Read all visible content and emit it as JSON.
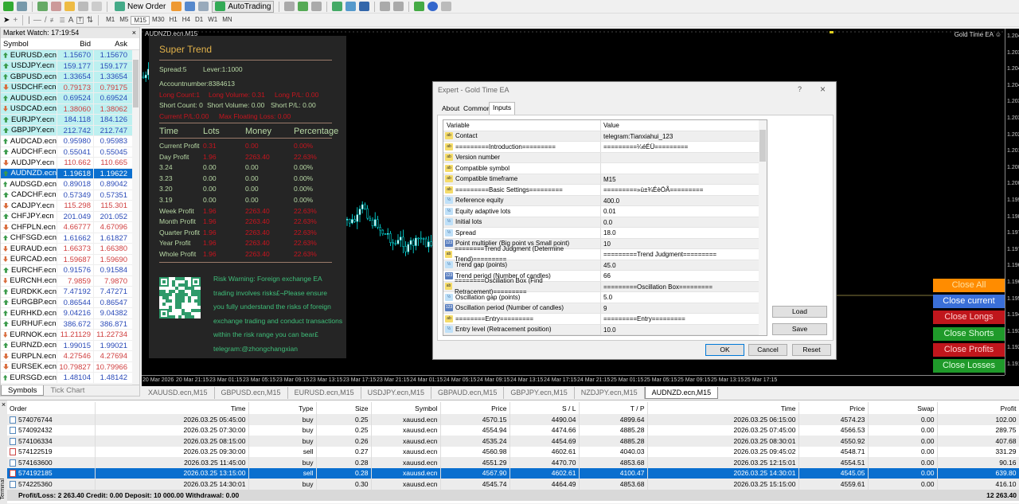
{
  "toolbar": {
    "new_order": "New Order",
    "autotrading": "AutoTrading",
    "timeframes": [
      "M1",
      "M5",
      "M15",
      "M30",
      "H1",
      "H4",
      "D1",
      "W1",
      "MN"
    ],
    "selected_timeframe": "M15"
  },
  "market_watch": {
    "title": "Market Watch: 17:19:54",
    "close": "×",
    "columns": [
      "Symbol",
      "Bid",
      "Ask"
    ],
    "rows": [
      [
        "EURUSD.ecn",
        "1.15670",
        "1.15670",
        "up",
        1
      ],
      [
        "USDJPY.ecn",
        "159.177",
        "159.177",
        "up",
        1
      ],
      [
        "GBPUSD.ecn",
        "1.33654",
        "1.33654",
        "up",
        1
      ],
      [
        "USDCHF.ecn",
        "0.79173",
        "0.79175",
        "down",
        1
      ],
      [
        "AUDUSD.ecn",
        "0.69524",
        "0.69524",
        "up",
        1
      ],
      [
        "USDCAD.ecn",
        "1.38060",
        "1.38062",
        "down",
        1
      ],
      [
        "EURJPY.ecn",
        "184.118",
        "184.126",
        "up",
        1
      ],
      [
        "GBPJPY.ecn",
        "212.742",
        "212.747",
        "up",
        1
      ],
      [
        "AUDCAD.ecn",
        "0.95980",
        "0.95983",
        "up",
        0
      ],
      [
        "AUDCHF.ecn",
        "0.55041",
        "0.55045",
        "up",
        0
      ],
      [
        "AUDJPY.ecn",
        "110.662",
        "110.665",
        "down",
        0
      ],
      [
        "AUDNZD.ecn",
        "1.19618",
        "1.19622",
        "up",
        2
      ],
      [
        "AUDSGD.ecn",
        "0.89018",
        "0.89042",
        "up",
        0
      ],
      [
        "CADCHF.ecn",
        "0.57349",
        "0.57351",
        "up",
        0
      ],
      [
        "CADJPY.ecn",
        "115.298",
        "115.301",
        "down",
        0
      ],
      [
        "CHFJPY.ecn",
        "201.049",
        "201.052",
        "up",
        0
      ],
      [
        "CHFPLN.ecn",
        "4.66777",
        "4.67096",
        "down",
        0
      ],
      [
        "CHFSGD.ecn",
        "1.61662",
        "1.61827",
        "up",
        0
      ],
      [
        "EURAUD.ecn",
        "1.66373",
        "1.66380",
        "down",
        0
      ],
      [
        "EURCAD.ecn",
        "1.59687",
        "1.59690",
        "down",
        0
      ],
      [
        "EURCHF.ecn",
        "0.91576",
        "0.91584",
        "up",
        0
      ],
      [
        "EURCNH.ecn",
        "7.9859",
        "7.9870",
        "down",
        0
      ],
      [
        "EURDKK.ecn",
        "7.47192",
        "7.47271",
        "up",
        0
      ],
      [
        "EURGBP.ecn",
        "0.86544",
        "0.86547",
        "up",
        0
      ],
      [
        "EURHKD.ecn",
        "9.04216",
        "9.04382",
        "up",
        0
      ],
      [
        "EURHUF.ecn",
        "386.672",
        "386.871",
        "up",
        0
      ],
      [
        "EURNOK.ecn",
        "11.21129",
        "11.22734",
        "down",
        0
      ],
      [
        "EURNZD.ecn",
        "1.99015",
        "1.99021",
        "up",
        0
      ],
      [
        "EURPLN.ecn",
        "4.27546",
        "4.27694",
        "down",
        0
      ],
      [
        "EURSEK.ecn",
        "10.79827",
        "10.79966",
        "down",
        0
      ],
      [
        "EURSGD.ecn",
        "1.48104",
        "1.48142",
        "up",
        0
      ]
    ],
    "tabs": [
      "Symbols",
      "Tick Chart"
    ]
  },
  "chart": {
    "title": "AUDNZD.ecn,M15",
    "ea_name": "Gold Time EA ☺",
    "price_labels": [
      "1.204",
      "1.203",
      "1.204",
      "1.204",
      "1.203",
      "1.203",
      "1.202",
      "1.201",
      "1.200",
      "1.200",
      "1.199",
      "1.198",
      "1.197",
      "1.197",
      "1.196",
      "1.196",
      "1.195",
      "1.194",
      "1.193",
      "1.192",
      "1.191"
    ],
    "time_labels": [
      "20 Mar 2026",
      "20 Mar 21:15",
      "23 Mar 01:15",
      "23 Mar 05:15",
      "23 Mar 09:15",
      "23 Mar 13:15",
      "23 Mar 17:15",
      "23 Mar 21:15",
      "24 Mar 01:15",
      "24 Mar 05:15",
      "24 Mar 09:15",
      "24 Mar 13:15",
      "24 Mar 17:15",
      "24 Mar 21:15",
      "25 Mar 01:15",
      "25 Mar 05:15",
      "25 Mar 09:15",
      "25 Mar 13:15",
      "25 Mar 17:15"
    ]
  },
  "super_trend": {
    "title": "Super Trend",
    "spread": "Spread:5",
    "lever": "Lever:1:1000",
    "account": "Accountnumber:8384613",
    "long_count": "Long Count:1",
    "long_volume": "Long Volume: 0.31",
    "long_pl": "Long P/L: 0.00",
    "short_count": "Short Count: 0",
    "short_volume": "Short Volume: 0.00",
    "short_pl": "Short P/L: 0.00",
    "current_pl": "Current P/L:0.00",
    "max_floating": "Max Floating Loss: 0.00",
    "headers": [
      "Time",
      "Lots",
      "Money",
      "Percentage"
    ],
    "rows": [
      [
        "Current Profit",
        "0.31",
        "0.00",
        "0.00%",
        1
      ],
      [
        "Day Profit",
        "1.96",
        "2263.40",
        "22.63%",
        1
      ],
      [
        "3.24",
        "0.00",
        "0.00",
        "0.00%",
        0
      ],
      [
        "3.23",
        "0.00",
        "0.00",
        "0.00%",
        0
      ],
      [
        "3.20",
        "0.00",
        "0.00",
        "0.00%",
        0
      ],
      [
        "3.19",
        "0.00",
        "0.00",
        "0.00%",
        0
      ],
      [
        "Week Profit",
        "1.96",
        "2263.40",
        "22.63%",
        1
      ],
      [
        "Month Profit",
        "1.96",
        "2263.40",
        "22.63%",
        1
      ],
      [
        "Quarter Profit",
        "1.96",
        "2263.40",
        "22.63%",
        1
      ],
      [
        "Year Profit",
        "1.96",
        "2263.40",
        "22.63%",
        1
      ],
      [
        "Whole Profit",
        "1.96",
        "2263.40",
        "22.63%",
        1
      ]
    ],
    "risk_lines": [
      "Risk Warning: Foreign exchange EA",
      "trading involves risks£¬Please ensure",
      "you fully understand the risks of foreign",
      "exchange trading and conduct transactions",
      "within the risk range you can bear£",
      "telegram:@zhongchangxian"
    ]
  },
  "dialog": {
    "title": "Expert - Gold Time EA",
    "help": "?",
    "close": "×",
    "tabs": [
      "About",
      "Common",
      "Inputs"
    ],
    "active_tab": "Inputs",
    "columns": [
      "Variable",
      "Value"
    ],
    "inputs": [
      [
        "ab",
        "Contact",
        "telegram:Tianxiahui_123"
      ],
      [
        "ab",
        "=========Introduction=========",
        "=========¼éÉÜ========="
      ],
      [
        "ab",
        "Version number",
        ""
      ],
      [
        "ab",
        "Compatible symbol",
        ""
      ],
      [
        "ab",
        "Compatible timeframe",
        "M15"
      ],
      [
        "ab",
        "=========Basic Settings=========",
        "=========»ù±¾ÉèÖÃ========="
      ],
      [
        "dbl",
        "Reference equity",
        "400.0"
      ],
      [
        "dbl",
        "Equity adaptive lots",
        "0.01"
      ],
      [
        "dbl",
        "Initial lots",
        "0.0"
      ],
      [
        "dbl",
        "Spread",
        "18.0"
      ],
      [
        "int",
        "Point multiplier (Big point vs Small point)",
        "10"
      ],
      [
        "ab",
        "========Trend Judgment (Determine Trend)=========",
        "=========Trend Judgment========="
      ],
      [
        "dbl",
        "Trend gap (points)",
        "45.0"
      ],
      [
        "int",
        "Trend period (Number of candles)",
        "66"
      ],
      [
        "ab",
        "========Oscillation Box (Find Retracement)=========",
        "=========Oscillation Box========="
      ],
      [
        "dbl",
        "Oscillation gap (points)",
        "5.0"
      ],
      [
        "int",
        "Oscillation period (Number of candles)",
        "9"
      ],
      [
        "ab",
        "========Entry=========",
        "=========Entry========="
      ],
      [
        "dbl",
        "Entry level (Retracement position)",
        "10.0"
      ]
    ],
    "load": "Load",
    "save": "Save",
    "ok": "OK",
    "cancel": "Cancel",
    "reset": "Reset"
  },
  "close_buttons": [
    [
      "Close All",
      "#ff8c00",
      "#ffe0a0"
    ],
    [
      "Close current",
      "#3a6fd8",
      "#ffffff"
    ],
    [
      "Close Longs",
      "#c0161c",
      "#ffd0d0"
    ],
    [
      "Close Shorts",
      "#1f9a2a",
      "#e0ffe0"
    ],
    [
      "Close Profits",
      "#c0161c",
      "#ffd0d0"
    ],
    [
      "Close Losses",
      "#1f9a2a",
      "#e0ffe0"
    ]
  ],
  "chart_tabs": [
    "XAUUSD.ecn,M15",
    "GBPUSD.ecn,M15",
    "EURUSD.ecn,M15",
    "USDJPY.ecn,M15",
    "GBPAUD.ecn,M15",
    "GBPJPY.ecn,M15",
    "NZDJPY.ecn,M15",
    "AUDNZD.ecn,M15"
  ],
  "active_chart_tab": "AUDNZD.ecn,M15",
  "terminal": {
    "label": "Terminal",
    "columns": [
      "Order",
      "Time",
      "Type",
      "Size",
      "Symbol",
      "Price",
      "S / L",
      "T / P",
      "Time",
      "Price",
      "Swap",
      "Profit"
    ],
    "rows": [
      [
        "574076744",
        "2026.03.25 05:45:00",
        "buy",
        "0.25",
        "xauusd.ecn",
        "4570.15",
        "4490.04",
        "4899.64",
        "2026.03.25 06:15:00",
        "4574.23",
        "0.00",
        "102.00"
      ],
      [
        "574092432",
        "2026.03.25 07:30:00",
        "buy",
        "0.25",
        "xauusd.ecn",
        "4554.94",
        "4474.66",
        "4885.28",
        "2026.03.25 07:45:00",
        "4566.53",
        "0.00",
        "289.75"
      ],
      [
        "574106334",
        "2026.03.25 08:15:00",
        "buy",
        "0.26",
        "xauusd.ecn",
        "4535.24",
        "4454.69",
        "4885.28",
        "2026.03.25 08:30:01",
        "4550.92",
        "0.00",
        "407.68"
      ],
      [
        "574122519",
        "2026.03.25 09:30:00",
        "sell",
        "0.27",
        "xauusd.ecn",
        "4560.98",
        "4602.61",
        "4040.03",
        "2026.03.25 09:45:02",
        "4548.71",
        "0.00",
        "331.29"
      ],
      [
        "574163600",
        "2026.03.25 11:45:00",
        "buy",
        "0.28",
        "xauusd.ecn",
        "4551.29",
        "4470.70",
        "4853.68",
        "2026.03.25 12:15:01",
        "4554.51",
        "0.00",
        "90.16"
      ],
      [
        "574192185",
        "2026.03.25 13:15:00",
        "sell",
        "0.28",
        "xauusd.ecn",
        "4567.90",
        "4602.61",
        "4100.47",
        "2026.03.25 14:30:01",
        "4545.05",
        "0.00",
        "639.80"
      ],
      [
        "574225360",
        "2026.03.25 14:30:01",
        "buy",
        "0.30",
        "xauusd.ecn",
        "4545.74",
        "4464.49",
        "4853.68",
        "2026.03.25 15:15:00",
        "4559.61",
        "0.00",
        "416.10"
      ]
    ],
    "selected_order": "574192185",
    "summary": "Profit/Loss: 2 263.40  Credit: 0.00  Deposit: 10 000.00  Withdrawal: 0.00",
    "total": "12 263.40"
  }
}
